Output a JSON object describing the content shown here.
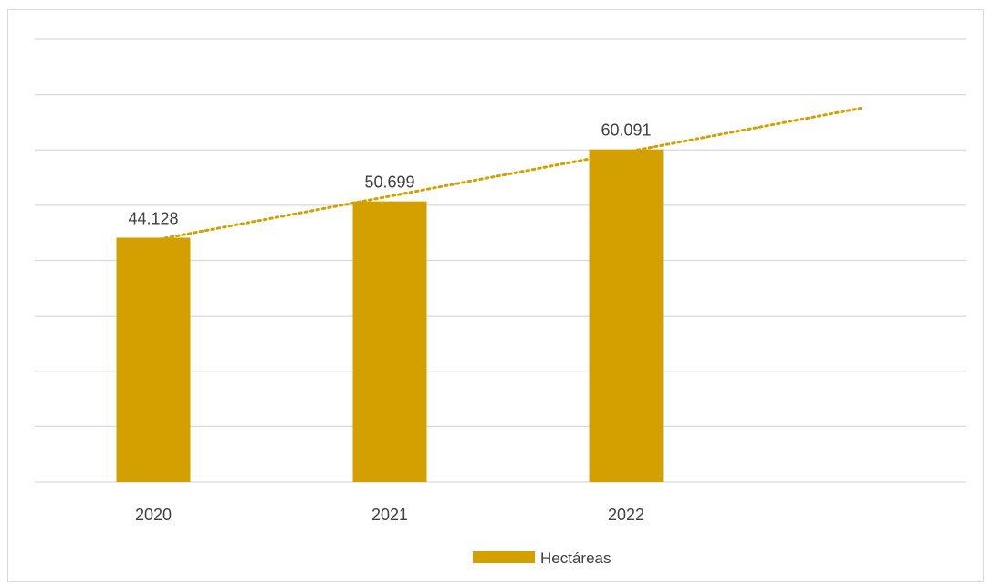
{
  "chart_data": {
    "type": "bar",
    "categories": [
      "2020",
      "2021",
      "2022"
    ],
    "series": [
      {
        "name": "Hectáreas",
        "values": [
          44128,
          50699,
          60091
        ],
        "value_labels": [
          "44.128",
          "50.699",
          "60.091"
        ],
        "color": "#D4A000"
      }
    ],
    "trendline": {
      "type": "linear",
      "style": "dotted",
      "forward_forecast_periods": 1,
      "color": "#D4A000"
    },
    "ylim": [
      0,
      80000
    ],
    "y_gridline_interval": 10000,
    "y_axis_visible": false,
    "grid": true,
    "legend": "bottom",
    "title": "",
    "xlabel": "",
    "ylabel": ""
  },
  "colors": {
    "gridline": "#d9d9d9",
    "text": "#404040"
  }
}
